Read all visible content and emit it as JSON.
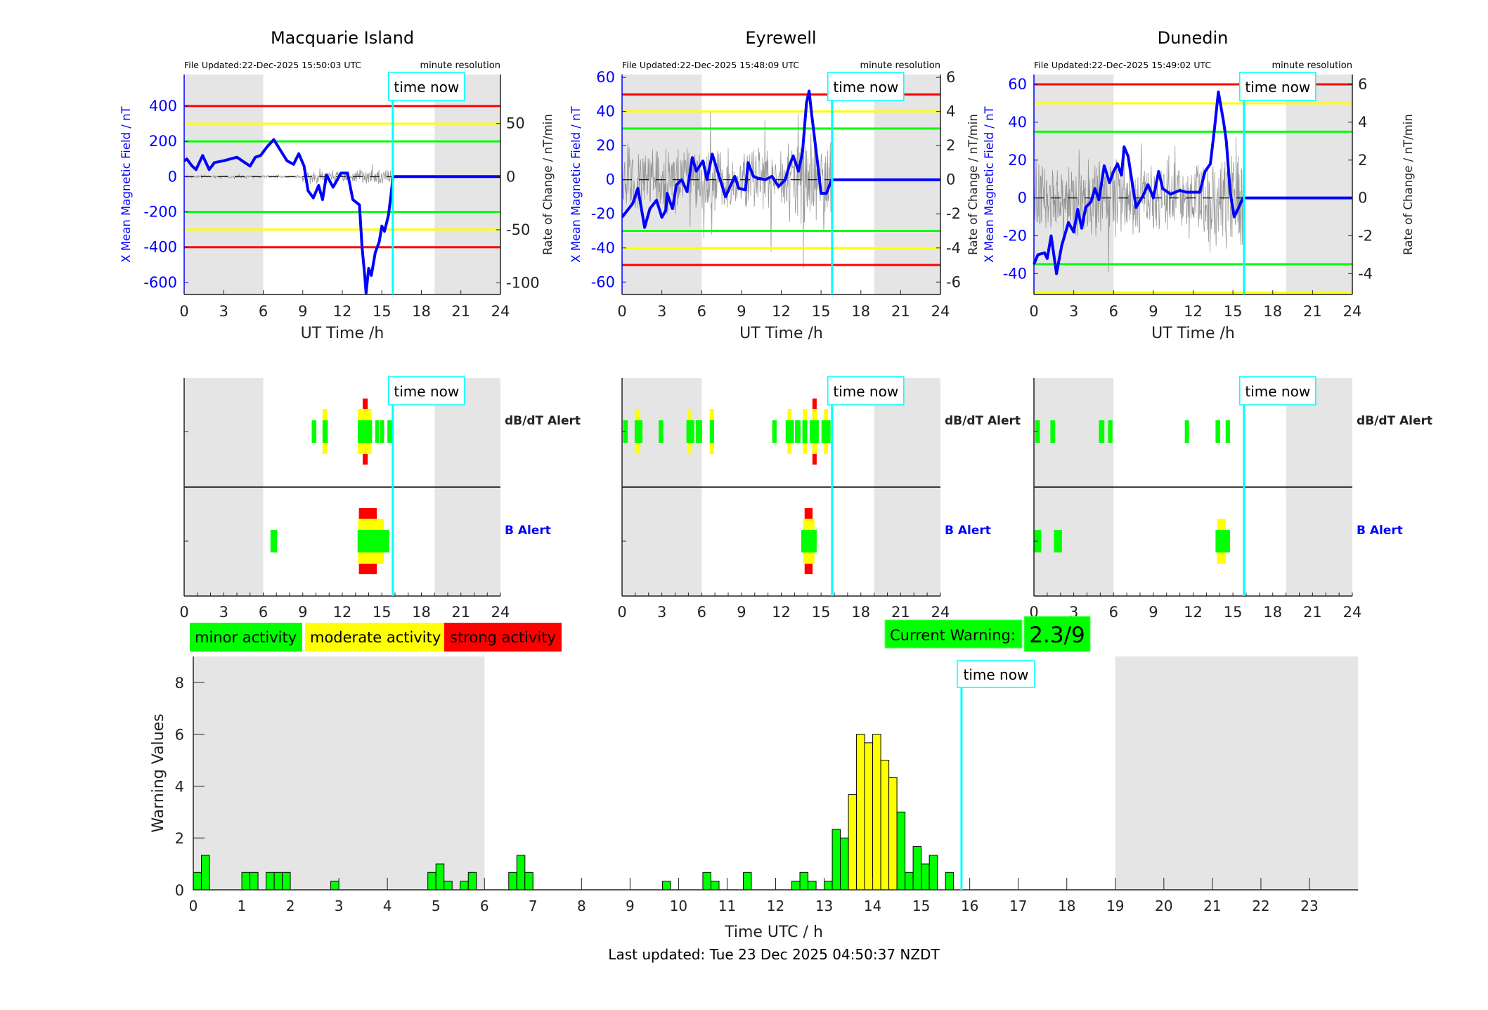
{
  "time_now_label": "time now",
  "time_now_hour": 15.83,
  "night_shading": [
    [
      0,
      6
    ],
    [
      19,
      24
    ]
  ],
  "colors": {
    "minor": "#00ff00",
    "moderate": "#ffff00",
    "strong": "#ff0000",
    "x_field": "#0000ff",
    "time_now": "#00ffff",
    "night": "#e5e5e5",
    "rate": "#808080"
  },
  "alert_labels": {
    "dbdt": "dB/dT Alert",
    "b": "B Alert"
  },
  "alert_x_ticks": [
    0,
    3,
    6,
    9,
    12,
    15,
    18,
    21,
    24
  ],
  "stations": [
    {
      "name": "Macquarie Island",
      "file_updated": "File Updated:22-Dec-2025 15:50:03 UTC",
      "resolution": "minute resolution",
      "left_label": "X Mean Magnetic Field / nT",
      "right_label": "Rate of Change / nT/min",
      "xlabel": "UT Time /h",
      "x_ticks": [
        0,
        3,
        6,
        9,
        12,
        15,
        18,
        21,
        24
      ],
      "left_ticks": [
        400,
        200,
        0,
        -200,
        -400,
        -600
      ],
      "right_ticks": [
        50,
        0,
        -50,
        -100
      ],
      "ylim_left": [
        -668,
        579
      ],
      "right_scale": 0.166,
      "thresholds": {
        "minor": 200,
        "moderate": 300,
        "strong": 400
      },
      "rate_amplitude": 35,
      "x_field": [
        [
          0,
          90
        ],
        [
          0.2,
          100
        ],
        [
          0.6,
          60
        ],
        [
          0.9,
          40
        ],
        [
          1.4,
          120
        ],
        [
          1.9,
          40
        ],
        [
          2.3,
          80
        ],
        [
          3,
          90
        ],
        [
          3.5,
          100
        ],
        [
          4,
          110
        ],
        [
          4.6,
          80
        ],
        [
          5,
          60
        ],
        [
          5.4,
          110
        ],
        [
          5.8,
          120
        ],
        [
          6.3,
          170
        ],
        [
          6.8,
          210
        ],
        [
          7.3,
          150
        ],
        [
          7.8,
          90
        ],
        [
          8.3,
          70
        ],
        [
          8.7,
          130
        ],
        [
          9.1,
          60
        ],
        [
          9.4,
          -80
        ],
        [
          9.8,
          -120
        ],
        [
          10.2,
          -50
        ],
        [
          10.5,
          -130
        ],
        [
          10.8,
          10
        ],
        [
          11.3,
          -60
        ],
        [
          11.9,
          20
        ],
        [
          12.4,
          20
        ],
        [
          12.8,
          -130
        ],
        [
          13.3,
          -160
        ],
        [
          13.5,
          -400
        ],
        [
          13.7,
          -560
        ],
        [
          13.8,
          -660
        ],
        [
          14,
          -520
        ],
        [
          14.2,
          -560
        ],
        [
          14.5,
          -430
        ],
        [
          14.8,
          -370
        ],
        [
          15,
          -280
        ],
        [
          15.2,
          -310
        ],
        [
          15.5,
          -220
        ],
        [
          15.7,
          -100
        ],
        [
          15.85,
          0
        ],
        [
          24,
          0
        ]
      ],
      "alerts": {
        "dbdt": [
          {
            "start": 9.68,
            "end": 10.03,
            "level": "minor"
          },
          {
            "start": 10.5,
            "end": 10.85,
            "level": "moderate"
          },
          {
            "start": 10.5,
            "end": 10.9,
            "level": "minor"
          },
          {
            "start": 13.55,
            "end": 13.93,
            "level": "strong"
          },
          {
            "start": 13.18,
            "end": 14.22,
            "level": "moderate"
          },
          {
            "start": 13.18,
            "end": 14.26,
            "level": "minor"
          },
          {
            "start": 14.5,
            "end": 14.8,
            "level": "minor"
          },
          {
            "start": 14.87,
            "end": 15.17,
            "level": "minor"
          },
          {
            "start": 15.42,
            "end": 15.78,
            "level": "minor"
          }
        ],
        "b": [
          {
            "start": 6.55,
            "end": 7.06,
            "level": "minor"
          },
          {
            "start": 13.26,
            "end": 14.62,
            "level": "strong"
          },
          {
            "start": 13.2,
            "end": 15.15,
            "level": "moderate"
          },
          {
            "start": 13.16,
            "end": 15.56,
            "level": "minor"
          }
        ]
      }
    },
    {
      "name": "Eyrewell",
      "file_updated": "File Updated:22-Dec-2025 15:48:09 UTC",
      "resolution": "minute resolution",
      "left_label": "X Mean Magnetic Field / nT",
      "right_label": "Rate of Change / nT/min",
      "xlabel": "UT Time /h",
      "x_ticks": [
        0,
        3,
        6,
        9,
        12,
        15,
        18,
        21,
        24
      ],
      "left_ticks": [
        60,
        40,
        20,
        0,
        -20,
        -40,
        -60
      ],
      "right_ticks": [
        6,
        4,
        2,
        0,
        -2,
        -4,
        -6
      ],
      "ylim_left": [
        -67.3,
        61.7
      ],
      "right_scale": 0.1,
      "thresholds": {
        "minor": 30,
        "moderate": 40,
        "strong": 50
      },
      "rate_amplitude": 22,
      "x_field": [
        [
          0,
          -22
        ],
        [
          0.4,
          -18
        ],
        [
          0.8,
          -14
        ],
        [
          1.2,
          -5
        ],
        [
          1.7,
          -28
        ],
        [
          2.1,
          -17
        ],
        [
          2.6,
          -12
        ],
        [
          3,
          -22
        ],
        [
          3.3,
          -18
        ],
        [
          3.4,
          -8
        ],
        [
          3.8,
          -17
        ],
        [
          4.1,
          -3
        ],
        [
          4.5,
          0
        ],
        [
          4.9,
          -7
        ],
        [
          5.3,
          13
        ],
        [
          5.6,
          5
        ],
        [
          6.1,
          11
        ],
        [
          6.4,
          0
        ],
        [
          6.8,
          15
        ],
        [
          7.2,
          5
        ],
        [
          7.8,
          -10
        ],
        [
          8.2,
          -3
        ],
        [
          8.5,
          2
        ],
        [
          8.8,
          -5
        ],
        [
          9.3,
          -6
        ],
        [
          9.5,
          10
        ],
        [
          9.9,
          2
        ],
        [
          10.2,
          1
        ],
        [
          10.8,
          0
        ],
        [
          11.3,
          2
        ],
        [
          11.8,
          -4
        ],
        [
          12.3,
          0
        ],
        [
          12.6,
          8
        ],
        [
          12.9,
          14
        ],
        [
          13.3,
          5
        ],
        [
          13.6,
          16
        ],
        [
          13.9,
          45
        ],
        [
          14.1,
          52
        ],
        [
          14.3,
          38
        ],
        [
          14.5,
          25
        ],
        [
          14.8,
          6
        ],
        [
          15,
          -8
        ],
        [
          15.4,
          -8
        ],
        [
          15.8,
          0
        ],
        [
          24,
          0
        ]
      ],
      "alerts": {
        "dbdt": [
          {
            "start": 0.08,
            "end": 0.43,
            "level": "minor"
          },
          {
            "start": 0.95,
            "end": 1.36,
            "level": "moderate"
          },
          {
            "start": 0.95,
            "end": 1.54,
            "level": "minor"
          },
          {
            "start": 2.76,
            "end": 3.1,
            "level": "minor"
          },
          {
            "start": 4.99,
            "end": 5.27,
            "level": "moderate"
          },
          {
            "start": 4.85,
            "end": 5.44,
            "level": "minor"
          },
          {
            "start": 5.56,
            "end": 6.03,
            "level": "minor"
          },
          {
            "start": 6.61,
            "end": 6.94,
            "level": "moderate"
          },
          {
            "start": 6.61,
            "end": 6.94,
            "level": "minor"
          },
          {
            "start": 11.32,
            "end": 11.65,
            "level": "minor"
          },
          {
            "start": 12.47,
            "end": 12.78,
            "level": "moderate"
          },
          {
            "start": 12.33,
            "end": 12.96,
            "level": "minor"
          },
          {
            "start": 13.04,
            "end": 13.45,
            "level": "minor"
          },
          {
            "start": 13.63,
            "end": 13.94,
            "level": "moderate"
          },
          {
            "start": 13.59,
            "end": 13.96,
            "level": "minor"
          },
          {
            "start": 14.35,
            "end": 14.67,
            "level": "strong"
          },
          {
            "start": 14.35,
            "end": 14.69,
            "level": "moderate"
          },
          {
            "start": 14.14,
            "end": 14.83,
            "level": "minor"
          },
          {
            "start": 15.22,
            "end": 15.52,
            "level": "moderate"
          },
          {
            "start": 15.03,
            "end": 15.72,
            "level": "minor"
          }
        ],
        "b": [
          {
            "start": 13.76,
            "end": 14.36,
            "level": "strong"
          },
          {
            "start": 13.65,
            "end": 14.5,
            "level": "moderate"
          },
          {
            "start": 13.51,
            "end": 14.67,
            "level": "minor"
          }
        ]
      }
    },
    {
      "name": "Dunedin",
      "file_updated": "File Updated:22-Dec-2025 15:49:02 UTC",
      "resolution": "minute resolution",
      "left_label": "X Mean Magnetic Field / nT",
      "right_label": "Rate of Change / nT/min",
      "xlabel": "UT Time /h",
      "x_ticks": [
        0,
        3,
        6,
        9,
        12,
        15,
        18,
        21,
        24
      ],
      "left_ticks": [
        60,
        40,
        20,
        0,
        -20,
        -40
      ],
      "right_ticks": [
        6,
        4,
        2,
        0,
        -2,
        -4
      ],
      "ylim_left": [
        -51,
        65.2
      ],
      "right_scale": 0.1,
      "thresholds": {
        "minor": 35,
        "moderate": 50,
        "strong": 60
      },
      "rate_amplitude": 22,
      "x_field": [
        [
          0,
          -35
        ],
        [
          0.3,
          -30
        ],
        [
          0.8,
          -29
        ],
        [
          1,
          -32
        ],
        [
          1.3,
          -20
        ],
        [
          1.7,
          -40
        ],
        [
          2.1,
          -25
        ],
        [
          2.6,
          -13
        ],
        [
          3,
          -18
        ],
        [
          3.3,
          -6
        ],
        [
          3.6,
          -16
        ],
        [
          3.9,
          -5
        ],
        [
          4.3,
          -2
        ],
        [
          4.6,
          5
        ],
        [
          4.9,
          -1
        ],
        [
          5.3,
          17
        ],
        [
          5.7,
          8
        ],
        [
          6,
          14
        ],
        [
          6.3,
          18
        ],
        [
          6.6,
          12
        ],
        [
          6.8,
          27
        ],
        [
          7.1,
          22
        ],
        [
          7.7,
          -5
        ],
        [
          8.2,
          1
        ],
        [
          8.6,
          7
        ],
        [
          9,
          0
        ],
        [
          9.4,
          14
        ],
        [
          9.7,
          5
        ],
        [
          10.3,
          2
        ],
        [
          11,
          4
        ],
        [
          11.5,
          3
        ],
        [
          12.1,
          3
        ],
        [
          12.5,
          3
        ],
        [
          12.9,
          14
        ],
        [
          13.3,
          18
        ],
        [
          13.6,
          36
        ],
        [
          13.9,
          56
        ],
        [
          14.3,
          40
        ],
        [
          14.5,
          30
        ],
        [
          14.8,
          3
        ],
        [
          15.1,
          -10
        ],
        [
          15.5,
          -4
        ],
        [
          15.75,
          0
        ],
        [
          24,
          0
        ]
      ],
      "alerts": {
        "dbdt": [
          {
            "start": 0.1,
            "end": 0.45,
            "level": "minor"
          },
          {
            "start": 1.24,
            "end": 1.59,
            "level": "minor"
          },
          {
            "start": 4.9,
            "end": 5.31,
            "level": "minor"
          },
          {
            "start": 5.59,
            "end": 5.92,
            "level": "minor"
          },
          {
            "start": 11.37,
            "end": 11.69,
            "level": "minor"
          },
          {
            "start": 13.69,
            "end": 14.04,
            "level": "minor"
          },
          {
            "start": 14.45,
            "end": 14.78,
            "level": "minor"
          }
        ],
        "b": [
          {
            "start": 0.0,
            "end": 0.55,
            "level": "minor"
          },
          {
            "start": 1.51,
            "end": 2.12,
            "level": "minor"
          },
          {
            "start": 13.8,
            "end": 14.47,
            "level": "moderate"
          },
          {
            "start": 13.69,
            "end": 14.78,
            "level": "minor"
          }
        ]
      }
    }
  ],
  "legend": [
    {
      "label": "minor activity",
      "level": "minor"
    },
    {
      "label": "moderate activity",
      "level": "moderate"
    },
    {
      "label": "strong activity",
      "level": "strong"
    }
  ],
  "current_warning": {
    "label": "Current Warning:",
    "value": "2.3/9"
  },
  "chart_data": {
    "type": "bar",
    "xlabel": "Time UTC / h",
    "ylabel": "Warning Values",
    "xlim": [
      0,
      24
    ],
    "ylim": [
      0,
      9
    ],
    "x_ticks": [
      0,
      1,
      2,
      3,
      4,
      5,
      6,
      7,
      8,
      9,
      10,
      11,
      12,
      13,
      14,
      15,
      16,
      17,
      18,
      19,
      20,
      21,
      22,
      23
    ],
    "y_ticks": [
      0,
      2,
      4,
      6,
      8
    ],
    "bin_width_hours": 0.1667,
    "x": [
      0,
      0.167,
      1.0,
      1.167,
      1.5,
      1.667,
      1.833,
      2.833,
      4.833,
      5.0,
      5.167,
      5.5,
      5.667,
      6.5,
      6.667,
      6.833,
      9.667,
      10.5,
      10.667,
      11.333,
      12.333,
      12.5,
      12.667,
      13.0,
      13.167,
      13.333,
      13.5,
      13.667,
      13.833,
      14.0,
      14.167,
      14.333,
      14.5,
      14.667,
      14.833,
      15.0,
      15.167,
      15.5
    ],
    "values": [
      0.67,
      1.33,
      0.67,
      0.67,
      0.67,
      0.67,
      0.67,
      0.33,
      0.67,
      1,
      0.33,
      0.33,
      0.67,
      0.67,
      1.33,
      0.67,
      0.33,
      0.67,
      0.33,
      0.67,
      0.33,
      0.67,
      0.33,
      0.33,
      2.33,
      2,
      3.67,
      6,
      5.67,
      6,
      5,
      4.33,
      3,
      0.67,
      1.67,
      1,
      1.33,
      0.67
    ],
    "levels": [
      "minor",
      "minor",
      "minor",
      "minor",
      "minor",
      "minor",
      "minor",
      "minor",
      "minor",
      "minor",
      "minor",
      "minor",
      "minor",
      "minor",
      "minor",
      "minor",
      "minor",
      "minor",
      "minor",
      "minor",
      "minor",
      "minor",
      "minor",
      "minor",
      "minor",
      "minor",
      "moderate",
      "moderate",
      "moderate",
      "moderate",
      "moderate",
      "moderate",
      "minor",
      "minor",
      "minor",
      "minor",
      "minor",
      "minor"
    ],
    "night_shading": [
      [
        0,
        6
      ],
      [
        19,
        24
      ]
    ],
    "grid": false
  },
  "footer": "Last updated: Tue 23 Dec 2025 04:50:37 NZDT"
}
